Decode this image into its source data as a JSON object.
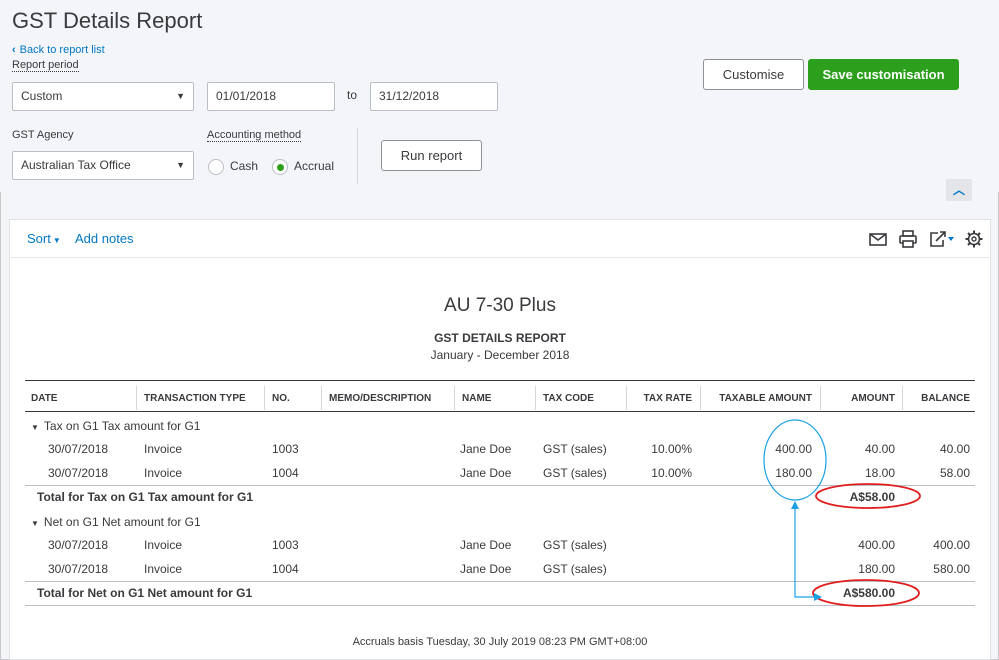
{
  "page": {
    "title": "GST Details Report",
    "back_link": "Back to report list"
  },
  "filters": {
    "report_period_label": "Report period",
    "period_value": "Custom",
    "from_date": "01/01/2018",
    "to_label": "to",
    "to_date": "31/12/2018",
    "agency_label": "GST Agency",
    "agency_value": "Australian Tax Office",
    "method_label": "Accounting method",
    "method_options": [
      "Cash",
      "Accrual"
    ],
    "method_selected": "Accrual",
    "run_report": "Run report",
    "customise": "Customise",
    "save_customisation": "Save customisation"
  },
  "toolbar": {
    "sort": "Sort",
    "add_notes": "Add notes",
    "icons": [
      "email-icon",
      "print-icon",
      "export-icon",
      "gear-icon"
    ]
  },
  "report": {
    "company": "AU 7-30 Plus",
    "title": "GST DETAILS REPORT",
    "period": "January - December 2018",
    "columns": [
      "DATE",
      "TRANSACTION TYPE",
      "NO.",
      "MEMO/DESCRIPTION",
      "NAME",
      "TAX CODE",
      "TAX RATE",
      "TAXABLE AMOUNT",
      "AMOUNT",
      "BALANCE"
    ],
    "groups": [
      {
        "label": "Tax on G1 Tax amount for G1",
        "rows": [
          {
            "date": "30/07/2018",
            "type": "Invoice",
            "no": "1003",
            "memo": "",
            "name": "Jane Doe",
            "tax_code": "GST (sales)",
            "tax_rate": "10.00%",
            "taxable": "400.00",
            "amount": "40.00",
            "balance": "40.00"
          },
          {
            "date": "30/07/2018",
            "type": "Invoice",
            "no": "1004",
            "memo": "",
            "name": "Jane Doe",
            "tax_code": "GST (sales)",
            "tax_rate": "10.00%",
            "taxable": "180.00",
            "amount": "18.00",
            "balance": "58.00"
          }
        ],
        "total_label": "Total for Tax on G1 Tax amount for G1",
        "total_amount": "A$58.00"
      },
      {
        "label": "Net on G1 Net amount for G1",
        "rows": [
          {
            "date": "30/07/2018",
            "type": "Invoice",
            "no": "1003",
            "memo": "",
            "name": "Jane Doe",
            "tax_code": "GST (sales)",
            "tax_rate": "",
            "taxable": "",
            "amount": "400.00",
            "balance": "400.00"
          },
          {
            "date": "30/07/2018",
            "type": "Invoice",
            "no": "1004",
            "memo": "",
            "name": "Jane Doe",
            "tax_code": "GST (sales)",
            "tax_rate": "",
            "taxable": "",
            "amount": "180.00",
            "balance": "580.00"
          }
        ],
        "total_label": "Total for Net on G1 Net amount for G1",
        "total_amount": "A$580.00"
      }
    ],
    "footer": "Accruals basis  Tuesday, 30 July 2019   08:23 PM GMT+08:00"
  },
  "colors": {
    "primary_green": "#2ca01c",
    "link_blue": "#0077c5",
    "annotation_red": "#e01e1e",
    "annotation_cyan": "#1ba1e2"
  }
}
